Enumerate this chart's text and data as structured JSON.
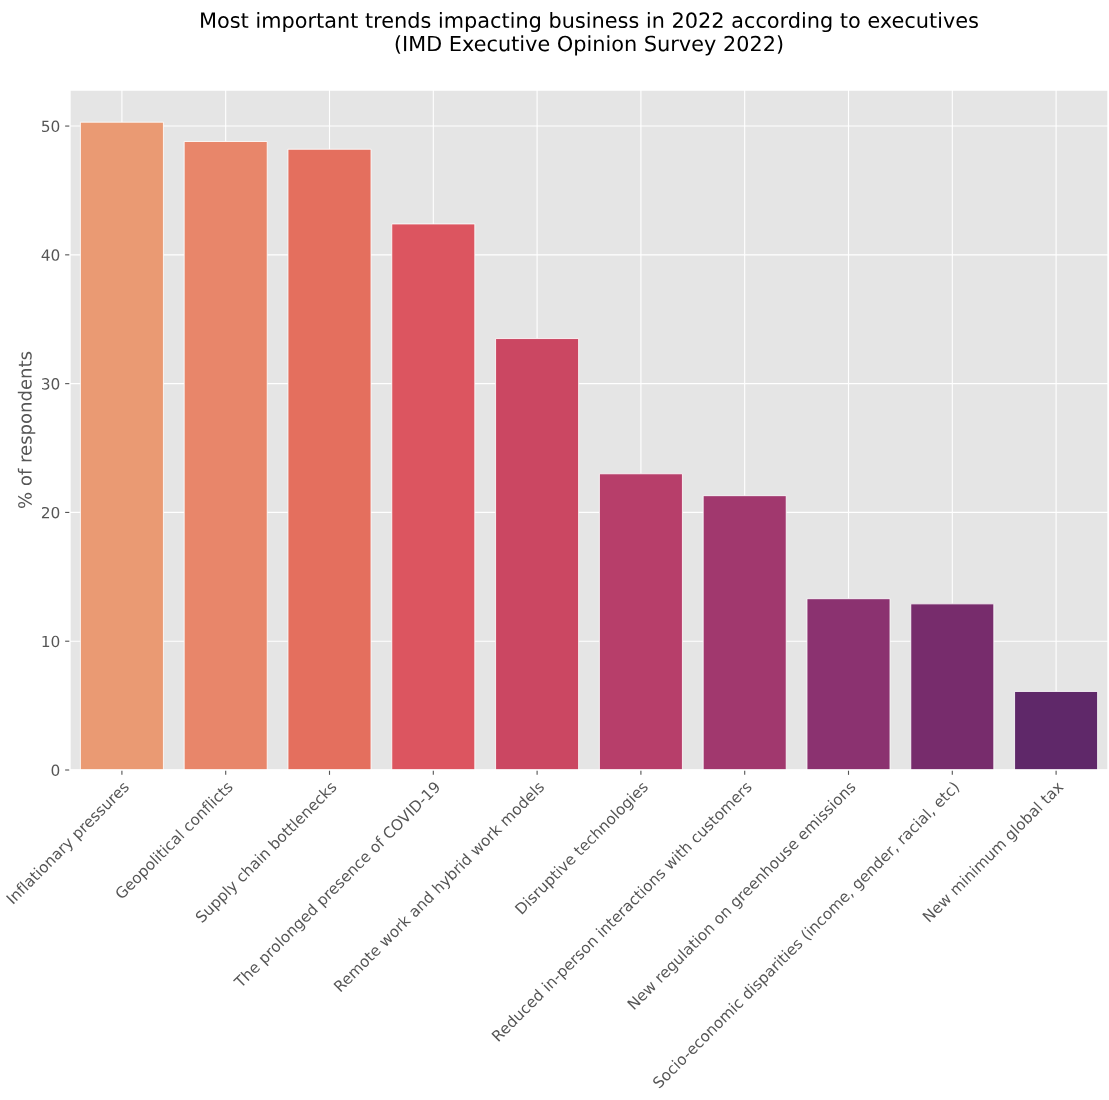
{
  "chart_data": {
    "type": "bar",
    "title": "Most important trends impacting business in 2022 according to executives\n(IMD Executive Opinion Survey 2022)",
    "ylabel": "% of respondents",
    "categories": [
      "Inflationary pressures",
      "Geopolitical conflicts",
      "Supply chain bottlenecks",
      "The prolonged presence of COVID-19",
      "Remote work and hybrid work models",
      "Disruptive technologies",
      "Reduced in-person interactions with customers",
      "New regulation on greenhouse emissions",
      "Socio-economic disparities (income, gender, racial, etc)",
      "New minimum global tax"
    ],
    "values": [
      50.3,
      48.8,
      48.2,
      42.4,
      33.5,
      23.0,
      21.3,
      13.3,
      12.9,
      6.1
    ],
    "colors": [
      "#ea9a73",
      "#e8866a",
      "#e46f5e",
      "#dc5560",
      "#cb4762",
      "#b73e6a",
      "#a1386e",
      "#8b3270",
      "#772c6c",
      "#5f2869"
    ],
    "ylim": [
      0,
      52.8
    ],
    "yticks": [
      0,
      10,
      20,
      30,
      40,
      50
    ],
    "grid": true
  }
}
